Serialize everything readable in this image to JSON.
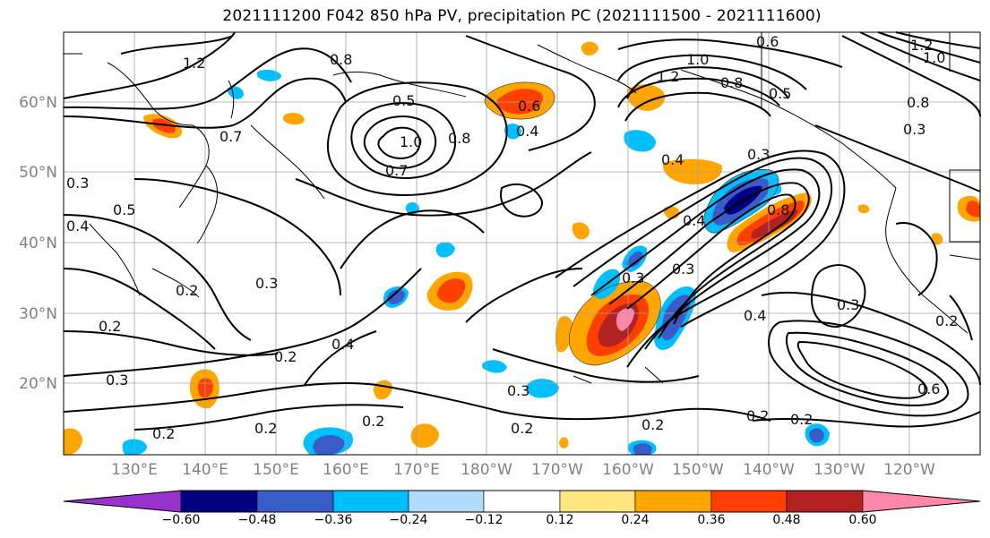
{
  "title": "2021111200 F042 850 hPa PV, precipitation PC (2021111500 - 2021111600)",
  "lat_labels": [
    "60°N",
    "50°N",
    "40°N",
    "30°N",
    "20°N"
  ],
  "lon_labels": [
    "130°E",
    "140°E",
    "150°E",
    "160°E",
    "170°E",
    "180°W",
    "170°W",
    "160°W",
    "150°W",
    "140°W",
    "130°W",
    "120°W"
  ],
  "colorbar": {
    "ticks": [
      "−0.60",
      "−0.48",
      "−0.36",
      "−0.24",
      "−0.12",
      "0.12",
      "0.24",
      "0.36",
      "0.48",
      "0.60"
    ],
    "colors": [
      "#9932CC",
      "#000080",
      "#3A5CC9",
      "#00BFFF",
      "#AEDCFA",
      "#FFFFFF",
      "#FFE680",
      "#FFA500",
      "#FF3F00",
      "#B22222",
      "#FF88AA"
    ]
  },
  "contour_labels": [
    "1.2",
    "0.8",
    "0.5",
    "0.7",
    "1.0",
    "0.8",
    "0.6",
    "0.4",
    "1.2",
    "1.0",
    "0.8",
    "0.5",
    "0.6",
    "1.2",
    "1.0",
    "0.8",
    "0.3",
    "0.3",
    "0.4",
    "0.5",
    "0.4",
    "0.2",
    "0.3",
    "0.2",
    "0.3",
    "0.4",
    "0.2",
    "0.3",
    "0.4",
    "0.8",
    "0.3",
    "0.4",
    "0.3",
    "0.2",
    "0.3",
    "0.2",
    "0.2",
    "0.2",
    "0.2",
    "0.2",
    "0.6",
    "0.3",
    "0.2",
    "0.2",
    "0.7"
  ]
}
